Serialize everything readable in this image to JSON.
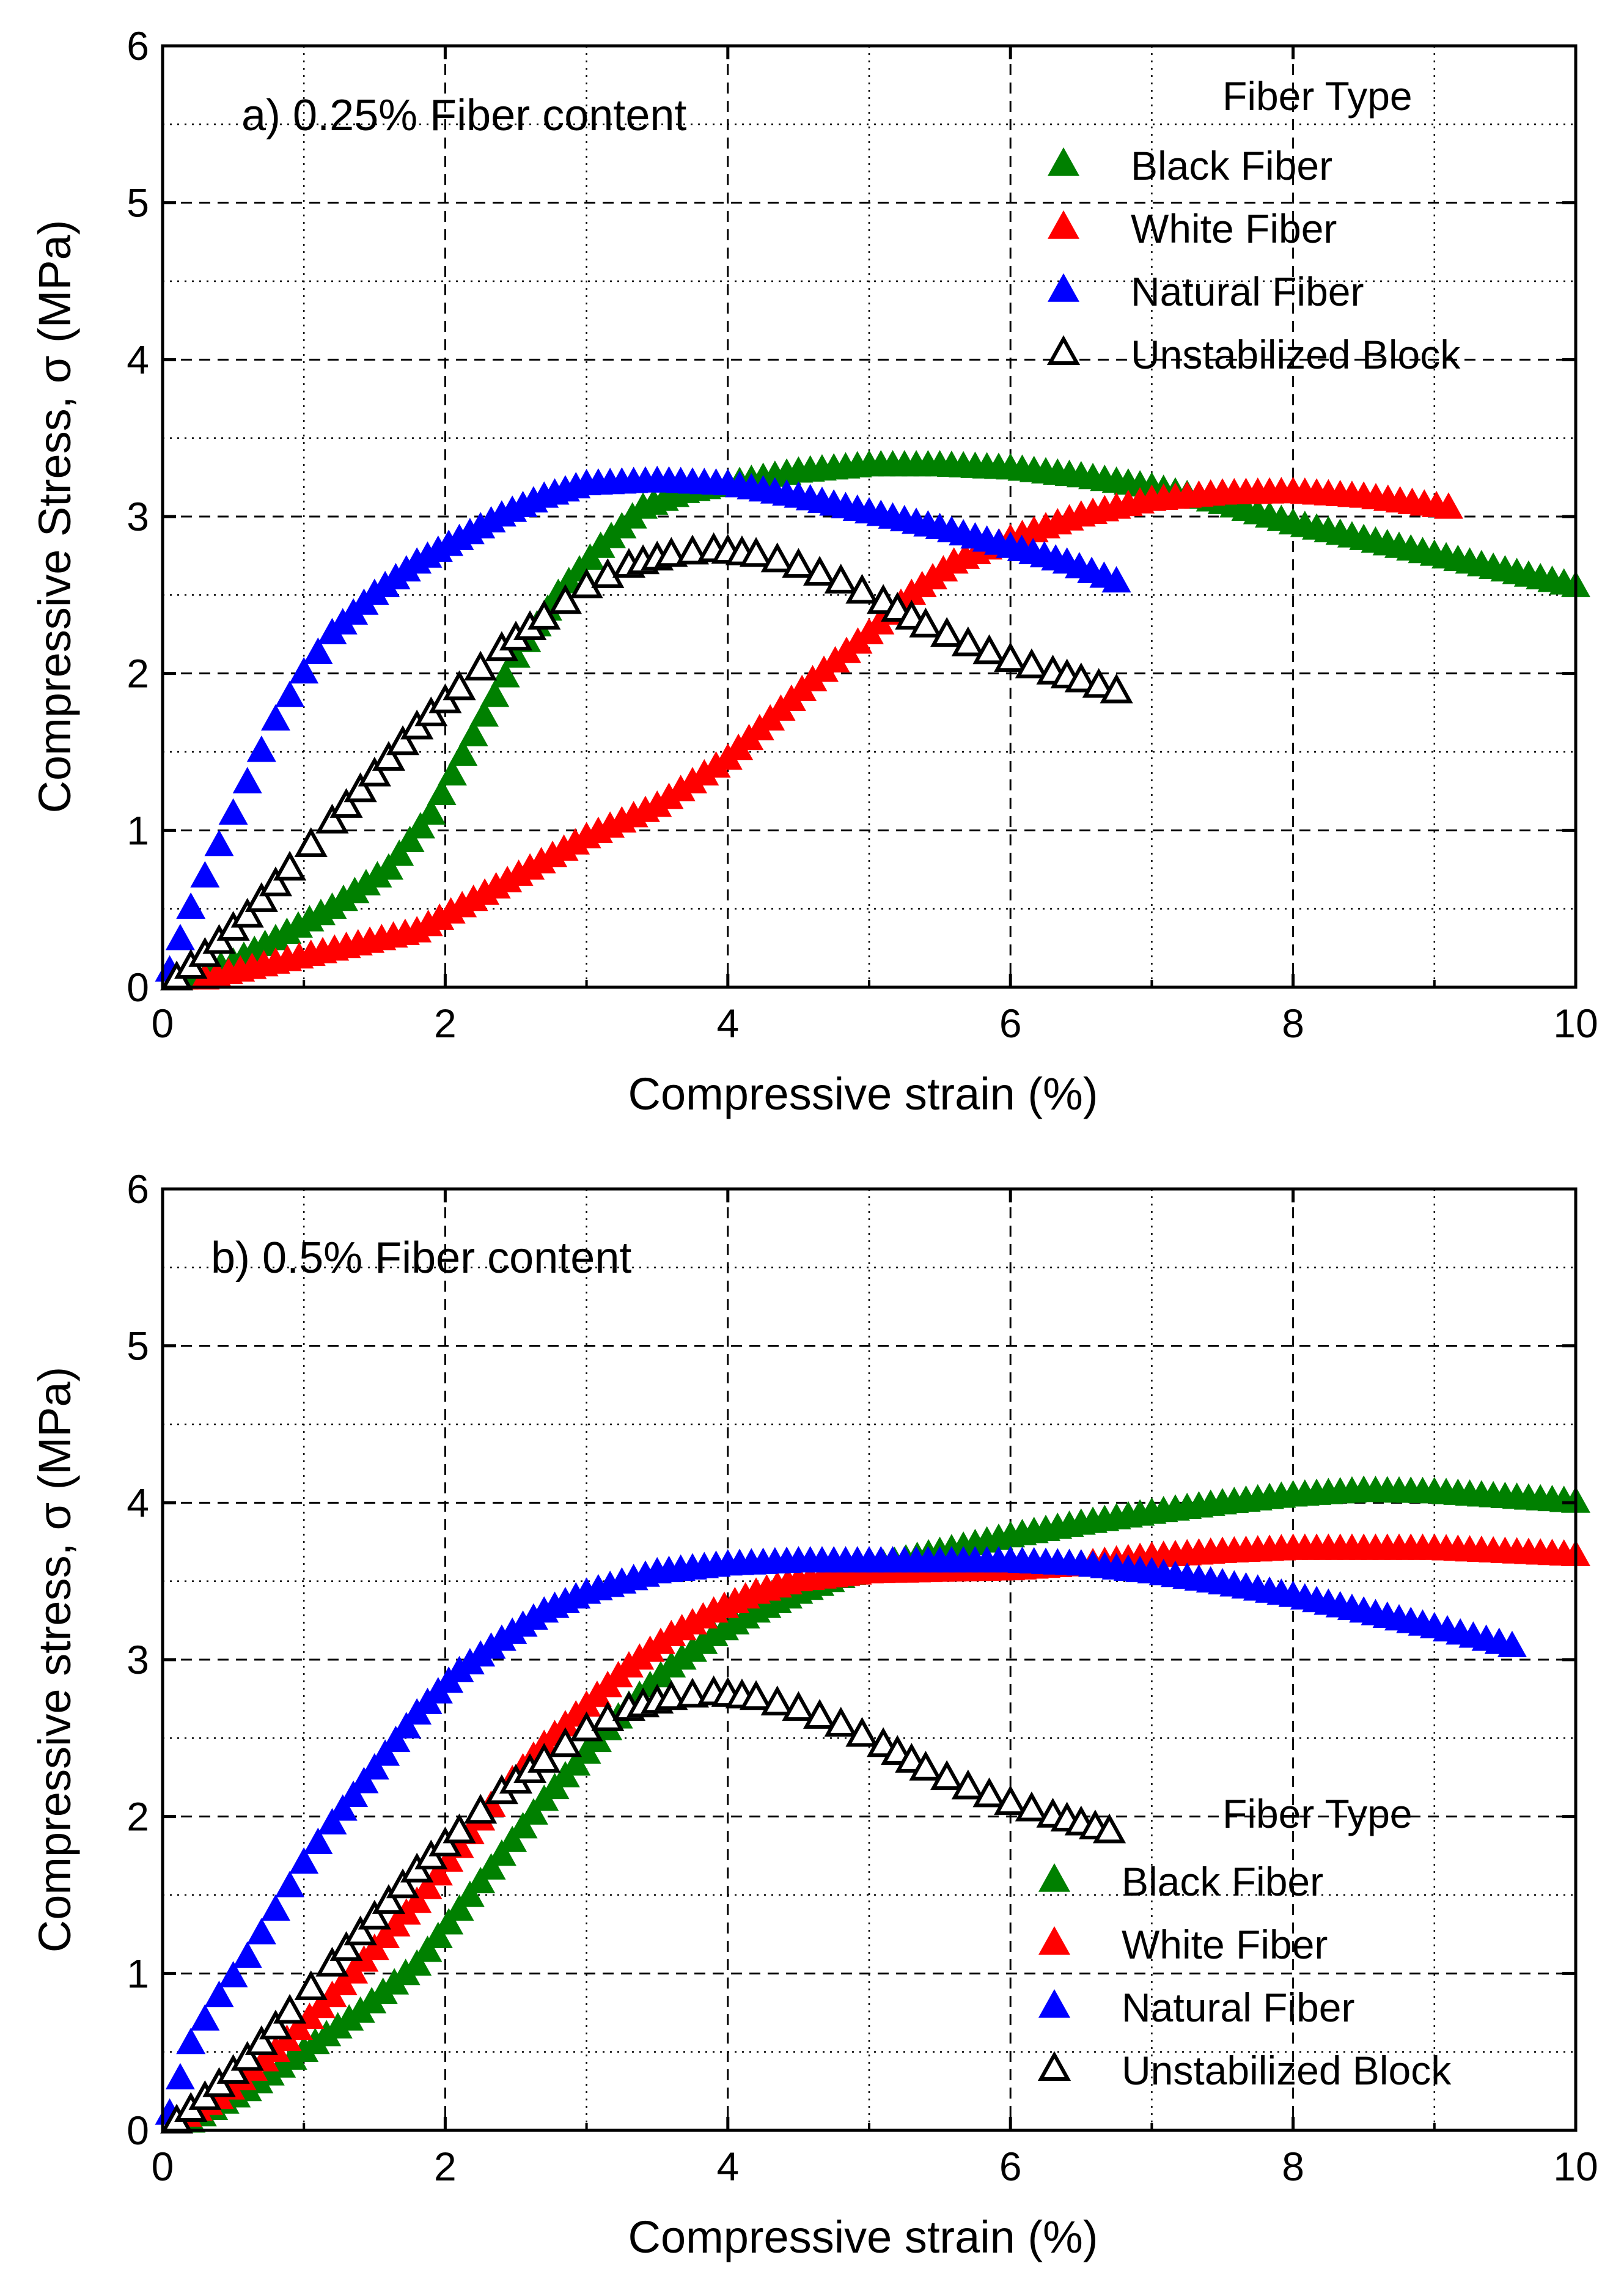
{
  "chart_data": [
    {
      "type": "scatter",
      "title": "a) 0.25% Fiber content",
      "xlabel": "Compressive strain (%)",
      "ylabel": "Compressive Stress, σ (MPa)",
      "xlim": [
        0,
        10
      ],
      "ylim": [
        0,
        6
      ],
      "xticks": [
        "0",
        "2",
        "4",
        "6",
        "8",
        "10"
      ],
      "yticks": [
        "0",
        "1",
        "2",
        "3",
        "4",
        "5",
        "6"
      ],
      "grid": true,
      "legend_title": "Fiber Type",
      "legend_position": "top-right",
      "series": [
        {
          "name": "Black Fiber",
          "color": "#008000",
          "marker": "filled-triangle",
          "points": [
            [
              0.15,
              0.05
            ],
            [
              0.5,
              0.15
            ],
            [
              0.8,
              0.3
            ],
            [
              1.2,
              0.5
            ],
            [
              1.6,
              0.75
            ],
            [
              1.9,
              1.1
            ],
            [
              2.2,
              1.6
            ],
            [
              2.5,
              2.1
            ],
            [
              2.8,
              2.5
            ],
            [
              3.1,
              2.8
            ],
            [
              3.4,
              3.05
            ],
            [
              3.7,
              3.15
            ],
            [
              4.0,
              3.2
            ],
            [
              4.5,
              3.28
            ],
            [
              5.0,
              3.32
            ],
            [
              5.5,
              3.32
            ],
            [
              6.0,
              3.3
            ],
            [
              6.5,
              3.25
            ],
            [
              7.0,
              3.18
            ],
            [
              7.5,
              3.08
            ],
            [
              8.0,
              2.95
            ],
            [
              8.5,
              2.85
            ],
            [
              9.0,
              2.75
            ],
            [
              9.5,
              2.65
            ],
            [
              10.0,
              2.55
            ]
          ]
        },
        {
          "name": "White Fiber",
          "color": "#ff0000",
          "marker": "filled-triangle",
          "points": [
            [
              0.3,
              0.05
            ],
            [
              0.8,
              0.15
            ],
            [
              1.3,
              0.25
            ],
            [
              1.8,
              0.35
            ],
            [
              2.2,
              0.55
            ],
            [
              2.6,
              0.75
            ],
            [
              3.0,
              0.95
            ],
            [
              3.5,
              1.15
            ],
            [
              4.0,
              1.45
            ],
            [
              4.3,
              1.7
            ],
            [
              4.6,
              1.95
            ],
            [
              5.0,
              2.25
            ],
            [
              5.3,
              2.5
            ],
            [
              5.6,
              2.7
            ],
            [
              6.0,
              2.85
            ],
            [
              6.5,
              3.0
            ],
            [
              7.0,
              3.1
            ],
            [
              7.5,
              3.14
            ],
            [
              8.0,
              3.15
            ],
            [
              8.5,
              3.12
            ],
            [
              9.1,
              3.05
            ]
          ]
        },
        {
          "name": "Natural Fiber",
          "color": "#0000ff",
          "marker": "filled-triangle",
          "points": [
            [
              0.05,
              0.1
            ],
            [
              0.2,
              0.5
            ],
            [
              0.4,
              0.9
            ],
            [
              0.6,
              1.3
            ],
            [
              0.8,
              1.7
            ],
            [
              1.0,
              2.0
            ],
            [
              1.2,
              2.25
            ],
            [
              1.5,
              2.5
            ],
            [
              1.8,
              2.7
            ],
            [
              2.1,
              2.85
            ],
            [
              2.4,
              3.0
            ],
            [
              2.7,
              3.12
            ],
            [
              3.0,
              3.2
            ],
            [
              3.5,
              3.22
            ],
            [
              4.0,
              3.2
            ],
            [
              4.5,
              3.12
            ],
            [
              5.0,
              3.02
            ],
            [
              5.5,
              2.92
            ],
            [
              6.0,
              2.8
            ],
            [
              6.4,
              2.7
            ],
            [
              6.75,
              2.58
            ]
          ]
        },
        {
          "name": "Unstabilized Block",
          "color": "#000000",
          "marker": "open-triangle",
          "points": [
            [
              0.1,
              0.05
            ],
            [
              0.3,
              0.2
            ],
            [
              0.6,
              0.45
            ],
            [
              0.9,
              0.75
            ],
            [
              1.2,
              1.05
            ],
            [
              1.5,
              1.35
            ],
            [
              1.8,
              1.65
            ],
            [
              2.1,
              1.9
            ],
            [
              2.4,
              2.15
            ],
            [
              2.7,
              2.35
            ],
            [
              3.0,
              2.55
            ],
            [
              3.3,
              2.68
            ],
            [
              3.6,
              2.75
            ],
            [
              3.9,
              2.78
            ],
            [
              4.2,
              2.75
            ],
            [
              4.5,
              2.68
            ],
            [
              4.8,
              2.58
            ],
            [
              5.1,
              2.45
            ],
            [
              5.4,
              2.3
            ],
            [
              5.7,
              2.18
            ],
            [
              6.0,
              2.08
            ],
            [
              6.3,
              2.0
            ],
            [
              6.5,
              1.95
            ],
            [
              6.75,
              1.88
            ]
          ]
        }
      ]
    },
    {
      "type": "scatter",
      "title": "b) 0.5% Fiber content",
      "xlabel": "Compressive strain (%)",
      "ylabel": "Compressive stress, σ (MPa)",
      "xlim": [
        0,
        10
      ],
      "ylim": [
        0,
        6
      ],
      "xticks": [
        "0",
        "2",
        "4",
        "6",
        "8",
        "10"
      ],
      "yticks": [
        "0",
        "1",
        "2",
        "3",
        "4",
        "5",
        "6"
      ],
      "grid": true,
      "legend_title": "Fiber Type",
      "legend_position": "bottom-right",
      "series": [
        {
          "name": "Black Fiber",
          "color": "#008000",
          "marker": "filled-triangle",
          "points": [
            [
              0.2,
              0.05
            ],
            [
              0.6,
              0.25
            ],
            [
              1.0,
              0.5
            ],
            [
              1.4,
              0.75
            ],
            [
              1.8,
              1.05
            ],
            [
              2.1,
              1.4
            ],
            [
              2.4,
              1.75
            ],
            [
              2.7,
              2.1
            ],
            [
              3.0,
              2.4
            ],
            [
              3.3,
              2.7
            ],
            [
              3.6,
              2.95
            ],
            [
              3.9,
              3.15
            ],
            [
              4.2,
              3.3
            ],
            [
              4.5,
              3.42
            ],
            [
              4.8,
              3.52
            ],
            [
              5.1,
              3.6
            ],
            [
              5.5,
              3.68
            ],
            [
              6.0,
              3.78
            ],
            [
              6.5,
              3.86
            ],
            [
              7.0,
              3.93
            ],
            [
              7.5,
              3.99
            ],
            [
              8.0,
              4.04
            ],
            [
              8.5,
              4.07
            ],
            [
              9.0,
              4.06
            ],
            [
              9.5,
              4.03
            ],
            [
              10.0,
              4.0
            ]
          ]
        },
        {
          "name": "White Fiber",
          "color": "#ff0000",
          "marker": "filled-triangle",
          "points": [
            [
              0.1,
              0.05
            ],
            [
              0.4,
              0.2
            ],
            [
              0.8,
              0.5
            ],
            [
              1.2,
              0.85
            ],
            [
              1.5,
              1.15
            ],
            [
              1.8,
              1.45
            ],
            [
              2.1,
              1.8
            ],
            [
              2.4,
              2.15
            ],
            [
              2.7,
              2.45
            ],
            [
              3.0,
              2.7
            ],
            [
              3.3,
              2.95
            ],
            [
              3.6,
              3.15
            ],
            [
              3.9,
              3.3
            ],
            [
              4.2,
              3.42
            ],
            [
              4.5,
              3.5
            ],
            [
              5.0,
              3.55
            ],
            [
              5.5,
              3.56
            ],
            [
              6.0,
              3.57
            ],
            [
              6.5,
              3.6
            ],
            [
              7.0,
              3.65
            ],
            [
              7.5,
              3.68
            ],
            [
              8.0,
              3.7
            ],
            [
              8.5,
              3.7
            ],
            [
              9.0,
              3.7
            ],
            [
              9.5,
              3.68
            ],
            [
              10.0,
              3.66
            ]
          ]
        },
        {
          "name": "Natural Fiber",
          "color": "#0000ff",
          "marker": "filled-triangle",
          "points": [
            [
              0.05,
              0.1
            ],
            [
              0.2,
              0.55
            ],
            [
              0.4,
              0.85
            ],
            [
              0.6,
              1.1
            ],
            [
              0.8,
              1.4
            ],
            [
              1.0,
              1.7
            ],
            [
              1.2,
              1.95
            ],
            [
              1.5,
              2.3
            ],
            [
              1.8,
              2.65
            ],
            [
              2.1,
              2.92
            ],
            [
              2.4,
              3.12
            ],
            [
              2.7,
              3.3
            ],
            [
              3.0,
              3.42
            ],
            [
              3.5,
              3.55
            ],
            [
              4.0,
              3.6
            ],
            [
              4.5,
              3.62
            ],
            [
              5.0,
              3.62
            ],
            [
              5.5,
              3.62
            ],
            [
              6.0,
              3.62
            ],
            [
              6.5,
              3.6
            ],
            [
              7.0,
              3.55
            ],
            [
              7.5,
              3.48
            ],
            [
              8.0,
              3.4
            ],
            [
              8.5,
              3.3
            ],
            [
              9.0,
              3.2
            ],
            [
              9.55,
              3.08
            ]
          ]
        },
        {
          "name": "Unstabilized Block",
          "color": "#000000",
          "marker": "open-triangle",
          "points": [
            [
              0.1,
              0.05
            ],
            [
              0.3,
              0.2
            ],
            [
              0.6,
              0.45
            ],
            [
              0.9,
              0.75
            ],
            [
              1.2,
              1.05
            ],
            [
              1.5,
              1.35
            ],
            [
              1.8,
              1.65
            ],
            [
              2.1,
              1.9
            ],
            [
              2.4,
              2.15
            ],
            [
              2.7,
              2.35
            ],
            [
              3.0,
              2.55
            ],
            [
              3.3,
              2.68
            ],
            [
              3.6,
              2.75
            ],
            [
              3.9,
              2.78
            ],
            [
              4.2,
              2.75
            ],
            [
              4.5,
              2.68
            ],
            [
              4.8,
              2.58
            ],
            [
              5.1,
              2.45
            ],
            [
              5.4,
              2.3
            ],
            [
              5.7,
              2.18
            ],
            [
              6.0,
              2.08
            ],
            [
              6.3,
              2.0
            ],
            [
              6.5,
              1.95
            ],
            [
              6.7,
              1.9
            ]
          ]
        }
      ]
    }
  ]
}
